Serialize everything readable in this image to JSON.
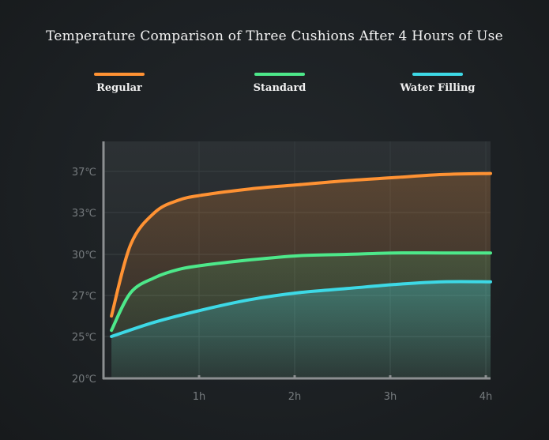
{
  "chart_data": {
    "type": "line",
    "title": "Temperature Comparison of Three Cushions After 4 Hours of Use",
    "x_ticks": [
      "1h",
      "2h",
      "3h",
      "4h"
    ],
    "y_ticks": [
      "20℃",
      "25℃",
      "27℃",
      "30℃",
      "33℃",
      "37℃"
    ],
    "xlim": [
      0,
      4
    ],
    "grid": true,
    "legend_position": "top",
    "series": [
      {
        "name": "Regular",
        "color": "#ff9233",
        "x": [
          0.05,
          0.25,
          0.5,
          0.75,
          1,
          1.5,
          2,
          2.5,
          3,
          3.5,
          4
        ],
        "y": [
          26.0,
          30.7,
          33.0,
          34.2,
          34.7,
          35.3,
          35.7,
          36.1,
          36.4,
          36.7,
          36.8
        ]
      },
      {
        "name": "Standard",
        "color": "#4de88a",
        "x": [
          0.05,
          0.25,
          0.5,
          0.75,
          1,
          1.5,
          2,
          2.5,
          3,
          3.5,
          4
        ],
        "y": [
          25.3,
          27.2,
          28.3,
          28.9,
          29.2,
          29.6,
          29.9,
          30.0,
          30.1,
          30.1,
          30.1
        ]
      },
      {
        "name": "Water Filling",
        "color": "#3dd9e6",
        "x": [
          0.05,
          0.5,
          1,
          1.5,
          2,
          2.5,
          3,
          3.5,
          4
        ],
        "y": [
          25.0,
          25.7,
          26.3,
          26.8,
          27.2,
          27.5,
          27.8,
          28.0,
          28.0
        ]
      }
    ]
  }
}
